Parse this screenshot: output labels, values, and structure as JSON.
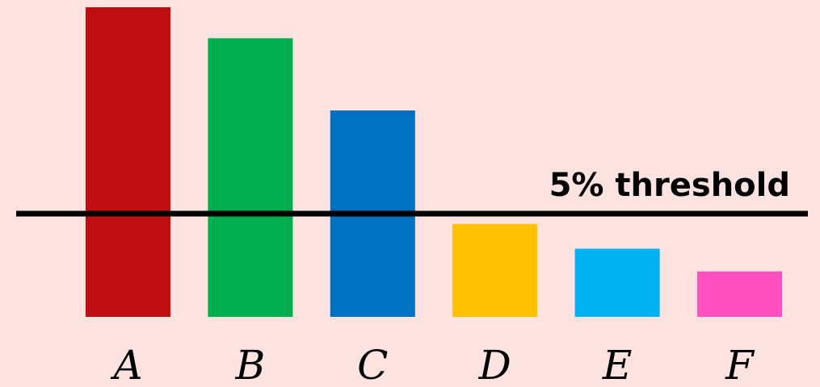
{
  "background_color": "#fde3e0",
  "chart_data": {
    "type": "bar",
    "categories": [
      "A",
      "B",
      "C",
      "D",
      "E",
      "F"
    ],
    "values": [
      15,
      13.5,
      10,
      4.5,
      3.3,
      2.2
    ],
    "colors": [
      "#c00f13",
      "#00ad4f",
      "#0070c0",
      "#ffc000",
      "#00b0f0",
      "#ff4fbe"
    ],
    "ylim": [
      0,
      15
    ],
    "grid": false,
    "threshold": {
      "value": 5,
      "label": "5% threshold",
      "color": "#000000"
    }
  }
}
